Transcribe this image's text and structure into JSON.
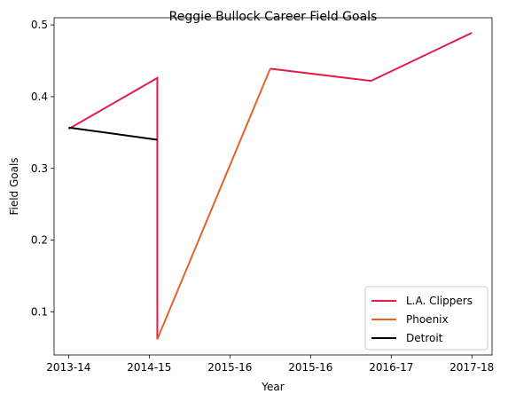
{
  "chart_data": {
    "type": "line",
    "title": "Reggie Bullock Career Field Goals",
    "xlabel": "Year",
    "ylabel": "Field Goals",
    "categories": [
      "2013-14",
      "2014-15",
      "2015-16",
      "2015-16",
      "2016-17",
      "2017-18"
    ],
    "ylim": [
      0.04,
      0.51
    ],
    "yticks": [
      0.1,
      0.2,
      0.3,
      0.4,
      0.5
    ],
    "ytick_labels": [
      "0.1",
      "0.2",
      "0.3",
      "0.4",
      "0.5"
    ],
    "grid": false,
    "legend_position": "lower-right",
    "series": [
      {
        "name": "L.A. Clippers",
        "color": "#e6194b",
        "points": [
          {
            "x": 0,
            "y": 0.355
          },
          {
            "x": 1.1,
            "y": 0.426
          },
          {
            "x": 1.1,
            "y": 0.062
          }
        ]
      },
      {
        "name": "Phoenix",
        "color": "#e6622a",
        "points": [
          {
            "x": 1.1,
            "y": 0.062
          },
          {
            "x": 2.5,
            "y": 0.439
          }
        ]
      },
      {
        "name": "L.A. Clippers",
        "color": "#e6194b",
        "points": [
          {
            "x": 2.5,
            "y": 0.439
          },
          {
            "x": 3.75,
            "y": 0.422
          },
          {
            "x": 5,
            "y": 0.489
          }
        ]
      },
      {
        "name": "Detroit",
        "color": "#000000",
        "points": [
          {
            "x": 0,
            "y": 0.357
          },
          {
            "x": 1.1,
            "y": 0.34
          }
        ]
      }
    ],
    "legend": [
      {
        "label": "L.A. Clippers",
        "color": "#e6194b"
      },
      {
        "label": "Phoenix",
        "color": "#e6622a"
      },
      {
        "label": "Detroit",
        "color": "#000000"
      }
    ]
  }
}
